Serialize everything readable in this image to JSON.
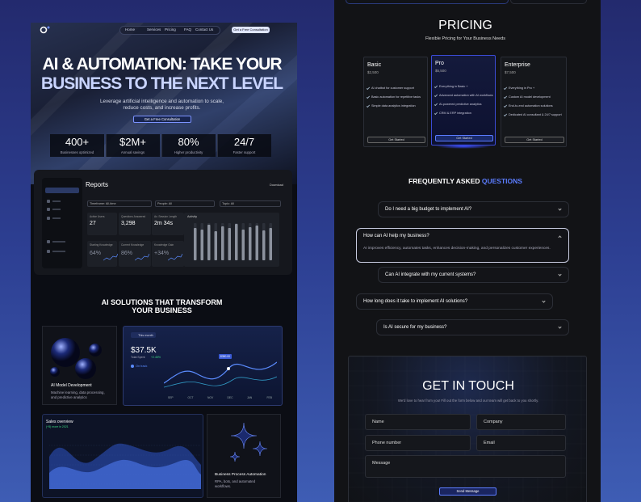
{
  "nav": {
    "links": [
      "Home",
      "Services",
      "Pricing",
      "FAQ",
      "Contact Us"
    ],
    "cta": "Get a Free Consultation"
  },
  "hero": {
    "title_line1": "AI & AUTOMATION: TAKE YOUR",
    "title_line2": "BUSINESS TO THE NEXT LEVEL",
    "subtitle": "Leverage artificial intelligence and automation to scale, reduce costs, and increase profits.",
    "cta": "Get a Free Consultation"
  },
  "stats": [
    {
      "value": "400+",
      "label": "Businesses optimized"
    },
    {
      "value": "$2M+",
      "label": "Annual savings"
    },
    {
      "value": "80%",
      "label": "Higher productivity"
    },
    {
      "value": "24/7",
      "label": "Faster support"
    }
  ],
  "reports": {
    "title": "Reports",
    "download": "Download",
    "filters": [
      "Timeframe: All-time",
      "People: All",
      "Topic: All"
    ],
    "cards": [
      {
        "label": "Active Users",
        "value": "27"
      },
      {
        "label": "Questions Answered",
        "value": "3,298"
      },
      {
        "label": "Av. Session Length",
        "value": "2m 34s"
      }
    ],
    "activity": "Activity",
    "knowledge": [
      {
        "label": "Starting Knowledge",
        "value": "64%"
      },
      {
        "label": "Current Knowledge",
        "value": "86%"
      },
      {
        "label": "Knowledge Gain",
        "value": "+34%"
      }
    ]
  },
  "solutions": {
    "title_line1": "AI SOLUTIONS THAT TRANSFORM",
    "title_line2": "YOUR BUSINESS",
    "model": {
      "title": "AI Model Development",
      "text": "Machine learning, data processing, and predictive analytics"
    },
    "spend": {
      "period": "This month",
      "amount": "$37.5K",
      "label": "Total Spent",
      "change": "+2.45%",
      "status": "On track",
      "tooltip": "$350.00",
      "months": [
        "SEP",
        "OCT",
        "NOV",
        "DEC",
        "JAN",
        "FEB"
      ]
    },
    "sales": {
      "title": "Sales overview",
      "subtitle": "(+5) more in 2021"
    },
    "automation": {
      "title": "Business Process Automation",
      "text": "RPA, bots, and automated workflows."
    }
  },
  "pricing": {
    "title": "PRICING",
    "subtitle": "Flexible Pricing for Your Business Needs",
    "plans": [
      {
        "name": "Basic",
        "price": "$2,500",
        "features": [
          "AI chatbot for customer support",
          "Basic automation for repetitive tasks",
          "Simple data analytics integration"
        ],
        "cta": "Get Started"
      },
      {
        "name": "Pro",
        "price": "$5,500",
        "features": [
          "Everything in Basic +",
          "Advanced automation with AI workflows",
          "AI-powered predictive analytics",
          "CRM & ERP integration"
        ],
        "cta": "Get Started"
      },
      {
        "name": "Enterprise",
        "price": "$7,500",
        "features": [
          "Everything in Pro +",
          "Custom AI model development",
          "End-to-end automation solutions",
          "Dedicated AI consultant & 24/7 support"
        ],
        "cta": "Get Started"
      }
    ]
  },
  "faq": {
    "title": "FREQUENTLY ASKED",
    "title_accent": "QUESTIONS",
    "items": [
      {
        "question": "Do I need a big budget to implement AI?"
      },
      {
        "question": "How can AI help my business?",
        "answer": "AI improves efficiency, automates tasks, enhances decision-making, and personalizes customer experiences."
      },
      {
        "question": "Can AI integrate with my current systems?"
      },
      {
        "question": "How long does it take to implement AI solutions?"
      },
      {
        "question": "Is AI secure for my business?"
      }
    ]
  },
  "contact": {
    "title": "GET IN TOUCH",
    "subtitle": "We'd love to hear from you! Fill out the form below and our team will get back to you shortly.",
    "fields": [
      "Name",
      "Company",
      "Phone number",
      "Email",
      "Message"
    ],
    "cta": "Send Message"
  }
}
